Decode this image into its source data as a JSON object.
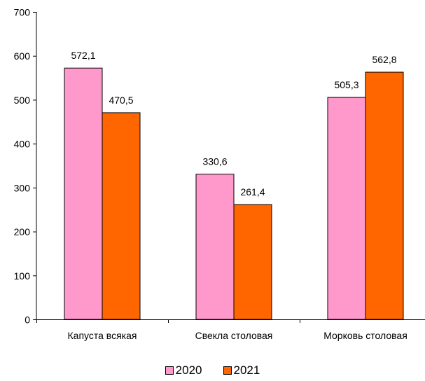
{
  "chart_data": {
    "type": "bar",
    "categories": [
      "Капуста всякая",
      "Свекла столовая",
      "Морковь столовая"
    ],
    "series": [
      {
        "name": "2020",
        "values": [
          572.1,
          330.6,
          505.3
        ],
        "labels": [
          "572,1",
          "330,6",
          "505,3"
        ],
        "color": "#FF99CC"
      },
      {
        "name": "2021",
        "values": [
          470.5,
          261.4,
          562.8
        ],
        "labels": [
          "470,5",
          "261,4",
          "562,8"
        ],
        "color": "#FF6600"
      }
    ],
    "ylim": [
      0,
      700
    ],
    "yticks": [
      0,
      100,
      200,
      300,
      400,
      500,
      600,
      700
    ],
    "grid": false,
    "legend_position": "bottom"
  }
}
